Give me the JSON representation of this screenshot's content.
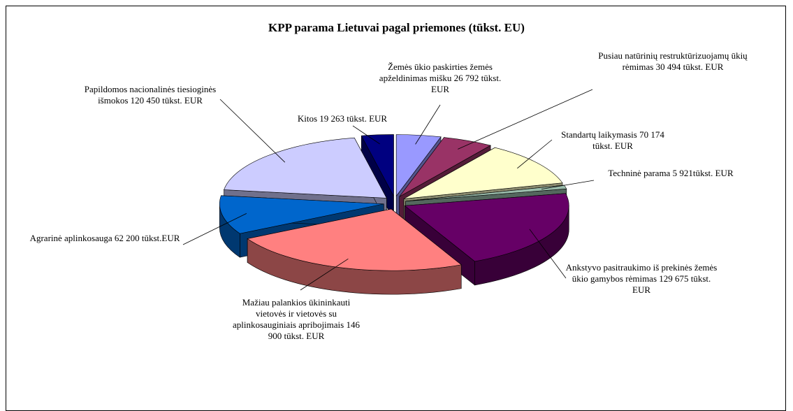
{
  "chart_data": {
    "type": "pie3d",
    "title": "KPP parama Lietuvai pagal priemones (tūkst. EU)",
    "values": [
      26792,
      30494,
      70174,
      5921,
      129675,
      146900,
      62200,
      120450,
      19263
    ],
    "value_labels": [
      "Žemės ūkio paskirties žemės apželdinimas mišku 26 792 tūkst. EUR",
      "Pusiau natūrinių restruktūrizuojamų ūkių rėmimas 30 494 tūkst. EUR",
      "Standartų laikymasis 70 174 tūkst. EUR",
      "Techninė parama 5 921tūkst. EUR",
      "Ankstyvo pasitraukimo iš prekinės žemės ūkio gamybos rėmimas 129 675 tūkst. EUR",
      "Mažiau palankios ūkininkauti vietovės ir vietovės su aplinkosauginiais apribojimais 146 900 tūkst. EUR",
      "Agrarinė aplinkosauga 62 200 tūkst.EUR",
      "Papildomos nacionalinės tiesioginės išmokos 120 450 tūkst. EUR",
      "Kitos 19 263 tūkst. EUR"
    ],
    "colors": [
      "#9999ff",
      "#993366",
      "#ffffcc",
      "#99bbaa",
      "#660066",
      "#ff8080",
      "#0066cc",
      "#ccccff",
      "#000080"
    ]
  }
}
